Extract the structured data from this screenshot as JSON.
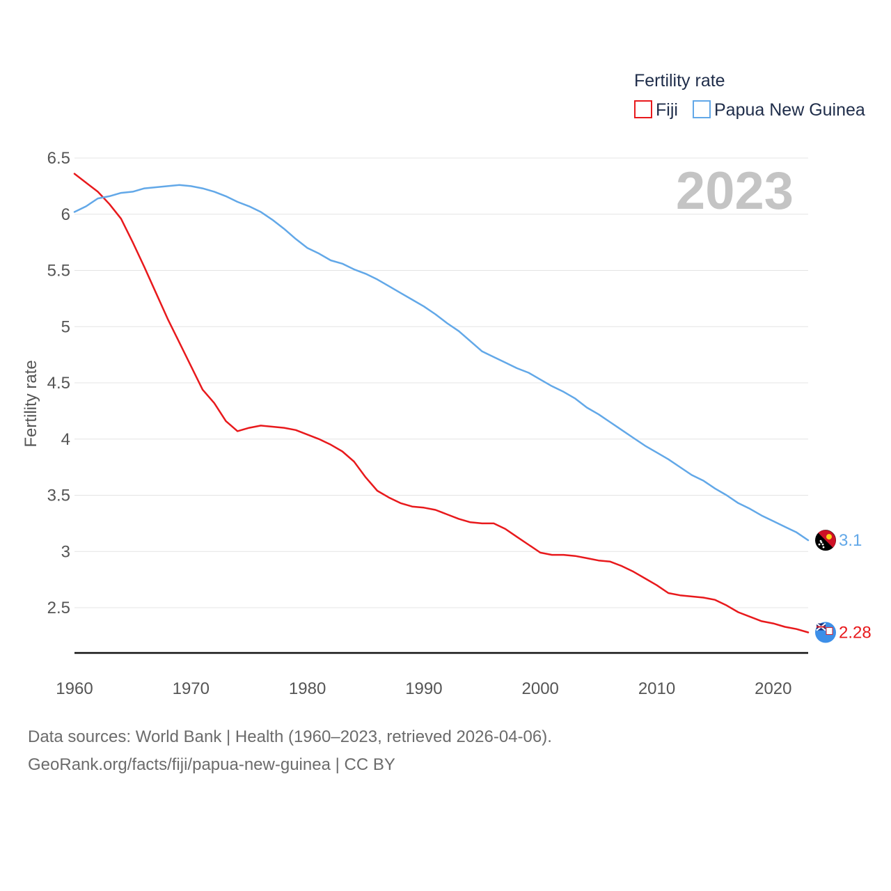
{
  "chart_data": {
    "type": "line",
    "ylabel": "Fertility rate",
    "xlabel": "",
    "legend_title": "Fertility rate",
    "legend_position": "top-right",
    "year_label": "2023",
    "xlim": [
      1960,
      2023
    ],
    "ylim": [
      2.1,
      6.5
    ],
    "y_ticks": [
      2.5,
      3,
      3.5,
      4,
      4.5,
      5,
      5.5,
      6,
      6.5
    ],
    "y_tick_labels": [
      "2.5",
      "3",
      "3.5",
      "4",
      "4.5",
      "5",
      "5.5",
      "6",
      "6.5"
    ],
    "x_ticks": [
      1960,
      1970,
      1980,
      1990,
      2000,
      2010,
      2020
    ],
    "x_tick_labels": [
      "1960",
      "1970",
      "1980",
      "1990",
      "2000",
      "2010",
      "2020"
    ],
    "grid": true,
    "x": [
      1960,
      1961,
      1962,
      1963,
      1964,
      1965,
      1966,
      1967,
      1968,
      1969,
      1970,
      1971,
      1972,
      1973,
      1974,
      1975,
      1976,
      1977,
      1978,
      1979,
      1980,
      1981,
      1982,
      1983,
      1984,
      1985,
      1986,
      1987,
      1988,
      1989,
      1990,
      1991,
      1992,
      1993,
      1994,
      1995,
      1996,
      1997,
      1998,
      1999,
      2000,
      2001,
      2002,
      2003,
      2004,
      2005,
      2006,
      2007,
      2008,
      2009,
      2010,
      2011,
      2012,
      2013,
      2014,
      2015,
      2016,
      2017,
      2018,
      2019,
      2020,
      2021,
      2022,
      2023
    ],
    "series": [
      {
        "name": "Fiji",
        "color": "#e8191c",
        "end_label": "2.28",
        "flag": "fiji-flag-icon",
        "values": [
          6.36,
          6.28,
          6.2,
          6.09,
          5.96,
          5.75,
          5.53,
          5.3,
          5.07,
          4.86,
          4.65,
          4.44,
          4.32,
          4.16,
          4.07,
          4.1,
          4.12,
          4.11,
          4.1,
          4.08,
          4.04,
          4.0,
          3.95,
          3.89,
          3.8,
          3.66,
          3.54,
          3.48,
          3.43,
          3.4,
          3.39,
          3.37,
          3.33,
          3.29,
          3.26,
          3.25,
          3.25,
          3.2,
          3.13,
          3.06,
          2.99,
          2.97,
          2.97,
          2.96,
          2.94,
          2.92,
          2.91,
          2.87,
          2.82,
          2.76,
          2.7,
          2.63,
          2.61,
          2.6,
          2.59,
          2.57,
          2.52,
          2.46,
          2.42,
          2.38,
          2.36,
          2.33,
          2.31,
          2.28
        ]
      },
      {
        "name": "Papua New Guinea",
        "color": "#62a8e8",
        "end_label": "3.1",
        "flag": "papua-new-guinea-flag-icon",
        "values": [
          6.02,
          6.07,
          6.14,
          6.16,
          6.19,
          6.2,
          6.23,
          6.24,
          6.25,
          6.26,
          6.25,
          6.23,
          6.2,
          6.16,
          6.11,
          6.07,
          6.02,
          5.95,
          5.87,
          5.78,
          5.7,
          5.65,
          5.59,
          5.56,
          5.51,
          5.47,
          5.42,
          5.36,
          5.3,
          5.24,
          5.18,
          5.11,
          5.03,
          4.96,
          4.87,
          4.78,
          4.73,
          4.68,
          4.63,
          4.59,
          4.53,
          4.47,
          4.42,
          4.36,
          4.28,
          4.22,
          4.15,
          4.08,
          4.01,
          3.94,
          3.88,
          3.82,
          3.75,
          3.68,
          3.63,
          3.56,
          3.5,
          3.43,
          3.38,
          3.32,
          3.27,
          3.22,
          3.17,
          3.1
        ]
      }
    ]
  },
  "footer": {
    "line1": "Data sources: World Bank | Health (1960–2023, retrieved 2026-04-06).",
    "line2": "GeoRank.org/facts/fiji/papua-new-guinea | CC BY"
  }
}
